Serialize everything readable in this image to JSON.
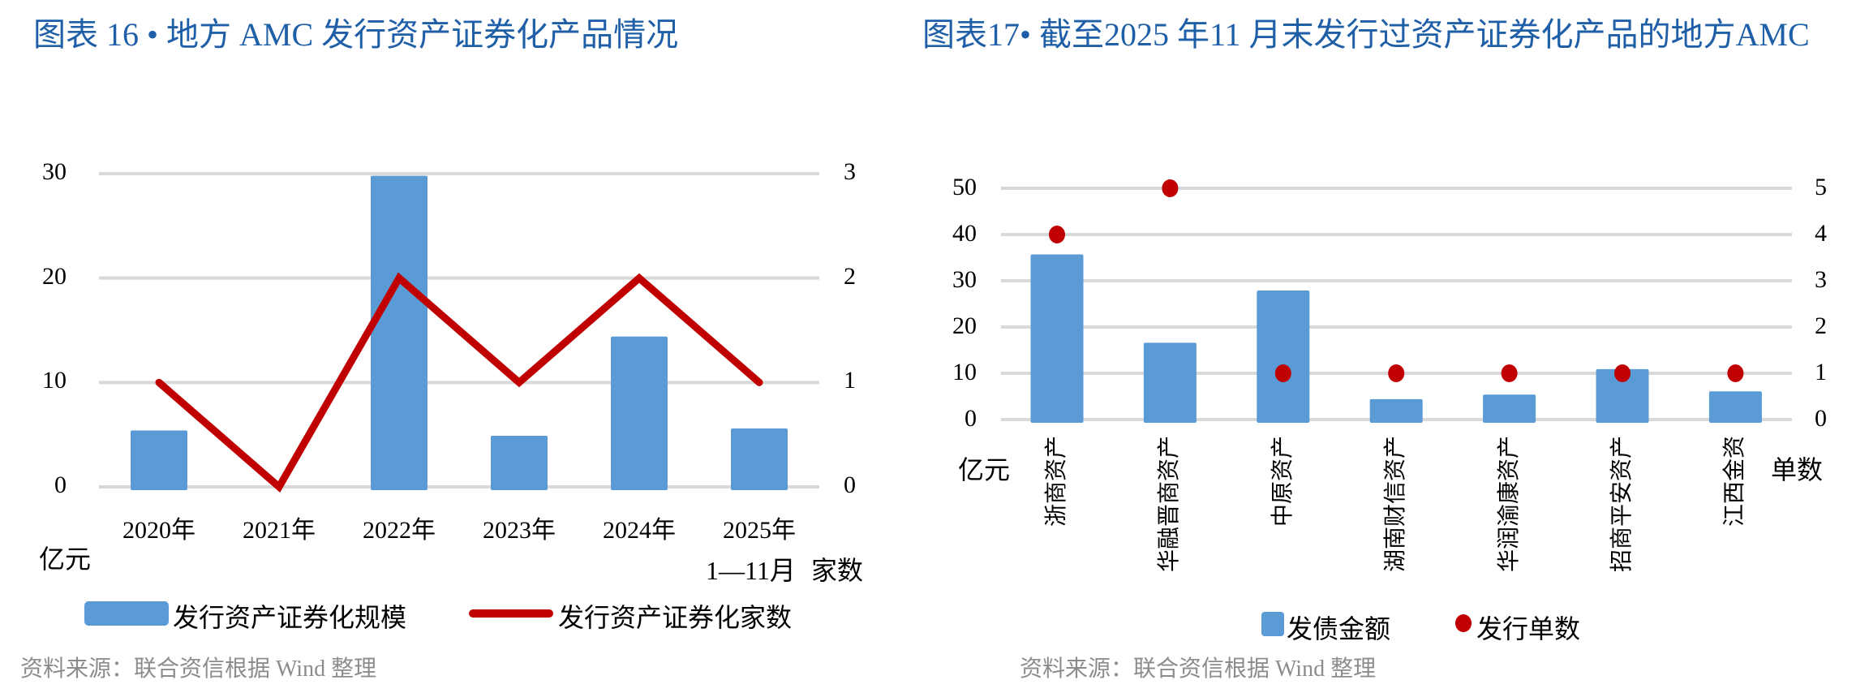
{
  "colors": {
    "bar": "#5b9bd5",
    "line": "#c00000",
    "grid": "#d9d9d9",
    "title": "#1f5fa8"
  },
  "left": {
    "title": "图表 16 • 地方 AMC 发行资产证券化产品情况",
    "left_unit": "亿元",
    "right_unit": "家数",
    "last_category_suffix": "1—11月",
    "legend_bar": "发行资产证券化规模",
    "legend_line": "发行资产证券化家数",
    "source": "资料来源：联合资信根据 Wind 整理"
  },
  "right": {
    "title": "图表17•  截至2025 年11 月末发行过资产证券化产品的地方AMC",
    "left_unit": "亿元",
    "right_unit": "单数",
    "legend_bar": "发债金额",
    "legend_dot": "发行单数",
    "source": "资料来源：联合资信根据 Wind 整理"
  },
  "chart_data": [
    {
      "type": "bar+line",
      "categories": [
        "2020年",
        "2021年",
        "2022年",
        "2023年",
        "2024年",
        "2025年"
      ],
      "series": [
        {
          "name": "发行资产证券化规模",
          "type": "bar",
          "axis": "left",
          "values": [
            5.4,
            0,
            29.8,
            4.9,
            14.4,
            5.6
          ]
        },
        {
          "name": "发行资产证券化家数",
          "type": "line",
          "axis": "right",
          "values": [
            1,
            0,
            2,
            1,
            2,
            1
          ]
        }
      ],
      "ylabel": "亿元",
      "y2label": "家数",
      "ylim": [
        0,
        30
      ],
      "y2lim": [
        0,
        3
      ],
      "yticks": [
        "0",
        "10",
        "20",
        "30"
      ],
      "y2ticks": [
        "0",
        "1",
        "2",
        "3"
      ],
      "grid": true,
      "legend": "bottom"
    },
    {
      "type": "bar+scatter",
      "categories": [
        "浙商资产",
        "华融晋商资产",
        "中原资产",
        "湖南财信资产",
        "华润渝康资产",
        "招商平安资产",
        "江西金资"
      ],
      "series": [
        {
          "name": "发债金额",
          "type": "bar",
          "axis": "left",
          "values": [
            35.7,
            16.6,
            27.9,
            4.4,
            5.4,
            10.9,
            6.1
          ]
        },
        {
          "name": "发行单数",
          "type": "scatter",
          "axis": "right",
          "values": [
            4,
            5,
            1,
            1,
            1,
            1,
            1
          ]
        }
      ],
      "ylabel": "亿元",
      "y2label": "单数",
      "ylim": [
        0,
        50
      ],
      "y2lim": [
        0,
        5
      ],
      "yticks": [
        "0",
        "10",
        "20",
        "30",
        "40",
        "50"
      ],
      "y2ticks": [
        "0",
        "1",
        "2",
        "3",
        "4",
        "5"
      ],
      "grid": true,
      "legend": "bottom"
    }
  ]
}
